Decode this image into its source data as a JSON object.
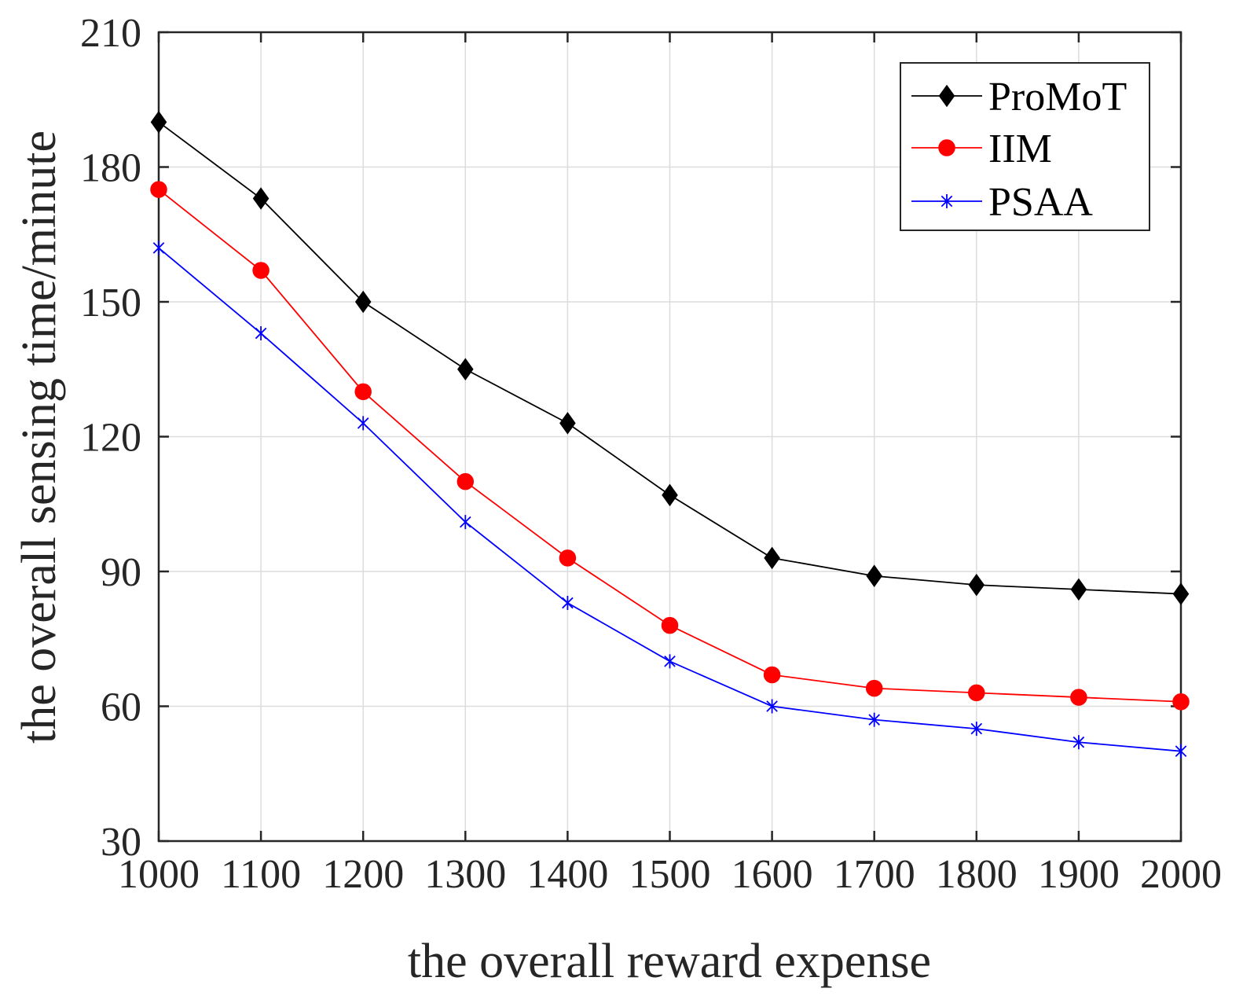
{
  "chart_data": {
    "type": "line",
    "title": "",
    "xlabel": "the overall reward expense",
    "ylabel": "the overall sensing time/minute",
    "xlim": [
      1000,
      2000
    ],
    "ylim": [
      30,
      210
    ],
    "xticks": [
      1000,
      1100,
      1200,
      1300,
      1400,
      1500,
      1600,
      1700,
      1800,
      1900,
      2000
    ],
    "yticks": [
      30,
      60,
      90,
      120,
      150,
      180,
      210
    ],
    "grid": true,
    "legend_position": "top-right",
    "x": [
      1000,
      1100,
      1200,
      1300,
      1400,
      1500,
      1600,
      1700,
      1800,
      1900,
      2000
    ],
    "series": [
      {
        "name": "ProMoT",
        "color": "#000000",
        "marker": "diamond",
        "values": [
          190,
          173,
          150,
          135,
          123,
          107,
          93,
          89,
          87,
          86,
          85
        ]
      },
      {
        "name": "IIM",
        "color": "#ff0000",
        "marker": "circle",
        "values": [
          175,
          157,
          130,
          110,
          93,
          78,
          67,
          64,
          63,
          62,
          61
        ]
      },
      {
        "name": "PSAA",
        "color": "#0000ff",
        "marker": "asterisk",
        "values": [
          162,
          143,
          123,
          101,
          83,
          70,
          60,
          57,
          55,
          52,
          50
        ]
      }
    ]
  }
}
